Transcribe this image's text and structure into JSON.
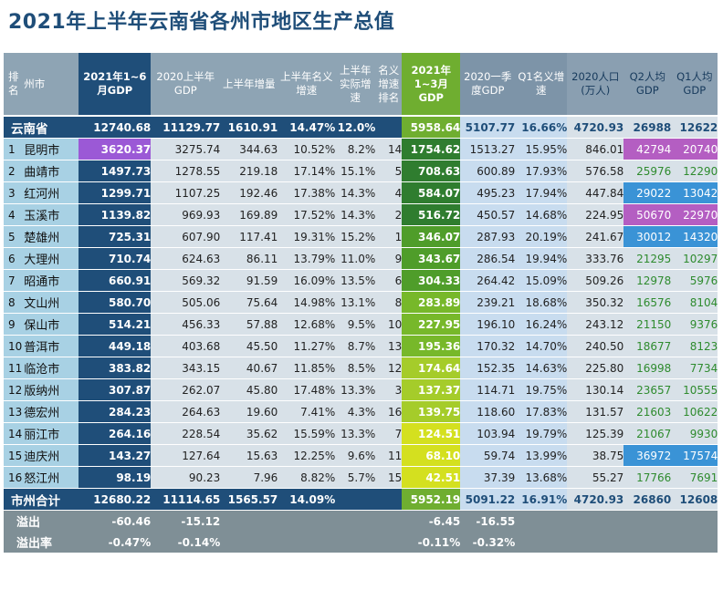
{
  "page": {
    "title": "2021年上半年云南省各州市地区生产总值"
  },
  "headers": {
    "rank": "排名",
    "name": "州市",
    "gdp21": "2021年1~6月GDP",
    "gdp20": "2020上半年GDP",
    "inc": "上半年增量",
    "ngr": "上半年名义增速",
    "rgr": "上半年实际增速",
    "rrank": "名义增速排名",
    "q1": "2021年1~3月GDP",
    "q1prev": "2020一季度GDP",
    "q1gr": "Q1名义增速",
    "pop": "2020人口(万人)",
    "q2pc": "Q2人均GDP",
    "q1pc": "Q1人均GDP"
  },
  "province": {
    "name": "云南省",
    "gdp21": "12740.68",
    "gdp20": "11129.77",
    "inc": "1610.91",
    "ngr": "14.47%",
    "rgr": "12.0%",
    "q1": "5958.64",
    "q1prev": "5107.77",
    "q1gr": "16.66%",
    "pop": "4720.93",
    "q2pc": "26988",
    "q1pc": "12622"
  },
  "rows": [
    {
      "rank": "1",
      "name": "昆明市",
      "gdp21": "3620.37",
      "gdp20": "3275.74",
      "inc": "344.63",
      "ngr": "10.52%",
      "rgr": "8.2%",
      "rrank": "14",
      "q1": "1754.62",
      "q1prev": "1513.27",
      "q1gr": "15.95%",
      "pop": "846.01",
      "q2pc": "42794",
      "q1pc": "20740"
    },
    {
      "rank": "2",
      "name": "曲靖市",
      "gdp21": "1497.73",
      "gdp20": "1278.55",
      "inc": "219.18",
      "ngr": "17.14%",
      "rgr": "15.1%",
      "rrank": "5",
      "q1": "708.63",
      "q1prev": "600.89",
      "q1gr": "17.93%",
      "pop": "576.58",
      "q2pc": "25976",
      "q1pc": "12290"
    },
    {
      "rank": "3",
      "name": "红河州",
      "gdp21": "1299.71",
      "gdp20": "1107.25",
      "inc": "192.46",
      "ngr": "17.38%",
      "rgr": "14.3%",
      "rrank": "4",
      "q1": "584.07",
      "q1prev": "495.23",
      "q1gr": "17.94%",
      "pop": "447.84",
      "q2pc": "29022",
      "q1pc": "13042"
    },
    {
      "rank": "4",
      "name": "玉溪市",
      "gdp21": "1139.82",
      "gdp20": "969.93",
      "inc": "169.89",
      "ngr": "17.52%",
      "rgr": "14.3%",
      "rrank": "2",
      "q1": "516.72",
      "q1prev": "450.57",
      "q1gr": "14.68%",
      "pop": "224.95",
      "q2pc": "50670",
      "q1pc": "22970"
    },
    {
      "rank": "5",
      "name": "楚雄州",
      "gdp21": "725.31",
      "gdp20": "607.90",
      "inc": "117.41",
      "ngr": "19.31%",
      "rgr": "15.2%",
      "rrank": "1",
      "q1": "346.07",
      "q1prev": "287.93",
      "q1gr": "20.19%",
      "pop": "241.67",
      "q2pc": "30012",
      "q1pc": "14320"
    },
    {
      "rank": "6",
      "name": "大理州",
      "gdp21": "710.74",
      "gdp20": "624.63",
      "inc": "86.11",
      "ngr": "13.79%",
      "rgr": "11.0%",
      "rrank": "9",
      "q1": "343.67",
      "q1prev": "286.54",
      "q1gr": "19.94%",
      "pop": "333.76",
      "q2pc": "21295",
      "q1pc": "10297"
    },
    {
      "rank": "7",
      "name": "昭通市",
      "gdp21": "660.91",
      "gdp20": "569.32",
      "inc": "91.59",
      "ngr": "16.09%",
      "rgr": "13.5%",
      "rrank": "6",
      "q1": "304.33",
      "q1prev": "264.42",
      "q1gr": "15.09%",
      "pop": "509.26",
      "q2pc": "12978",
      "q1pc": "5976"
    },
    {
      "rank": "8",
      "name": "文山州",
      "gdp21": "580.70",
      "gdp20": "505.06",
      "inc": "75.64",
      "ngr": "14.98%",
      "rgr": "13.1%",
      "rrank": "8",
      "q1": "283.89",
      "q1prev": "239.21",
      "q1gr": "18.68%",
      "pop": "350.32",
      "q2pc": "16576",
      "q1pc": "8104"
    },
    {
      "rank": "9",
      "name": "保山市",
      "gdp21": "514.21",
      "gdp20": "456.33",
      "inc": "57.88",
      "ngr": "12.68%",
      "rgr": "9.5%",
      "rrank": "10",
      "q1": "227.95",
      "q1prev": "196.10",
      "q1gr": "16.24%",
      "pop": "243.12",
      "q2pc": "21150",
      "q1pc": "9376"
    },
    {
      "rank": "10",
      "name": "普洱市",
      "gdp21": "449.18",
      "gdp20": "403.68",
      "inc": "45.50",
      "ngr": "11.27%",
      "rgr": "8.7%",
      "rrank": "13",
      "q1": "195.36",
      "q1prev": "170.32",
      "q1gr": "14.70%",
      "pop": "240.50",
      "q2pc": "18677",
      "q1pc": "8123"
    },
    {
      "rank": "11",
      "name": "临沧市",
      "gdp21": "383.82",
      "gdp20": "343.15",
      "inc": "40.67",
      "ngr": "11.85%",
      "rgr": "8.5%",
      "rrank": "12",
      "q1": "174.64",
      "q1prev": "152.35",
      "q1gr": "14.63%",
      "pop": "225.80",
      "q2pc": "16998",
      "q1pc": "7734"
    },
    {
      "rank": "12",
      "name": "版纳州",
      "gdp21": "307.87",
      "gdp20": "262.07",
      "inc": "45.80",
      "ngr": "17.48%",
      "rgr": "13.3%",
      "rrank": "3",
      "q1": "137.37",
      "q1prev": "114.71",
      "q1gr": "19.75%",
      "pop": "130.14",
      "q2pc": "23657",
      "q1pc": "10555"
    },
    {
      "rank": "13",
      "name": "德宏州",
      "gdp21": "284.23",
      "gdp20": "264.63",
      "inc": "19.60",
      "ngr": "7.41%",
      "rgr": "4.3%",
      "rrank": "16",
      "q1": "139.75",
      "q1prev": "118.60",
      "q1gr": "17.83%",
      "pop": "131.57",
      "q2pc": "21603",
      "q1pc": "10622"
    },
    {
      "rank": "14",
      "name": "丽江市",
      "gdp21": "264.16",
      "gdp20": "228.54",
      "inc": "35.62",
      "ngr": "15.59%",
      "rgr": "13.3%",
      "rrank": "7",
      "q1": "124.51",
      "q1prev": "103.94",
      "q1gr": "19.79%",
      "pop": "125.39",
      "q2pc": "21067",
      "q1pc": "9930"
    },
    {
      "rank": "15",
      "name": "迪庆州",
      "gdp21": "143.27",
      "gdp20": "127.64",
      "inc": "15.63",
      "ngr": "12.25%",
      "rgr": "9.6%",
      "rrank": "11",
      "q1": "68.10",
      "q1prev": "59.74",
      "q1gr": "13.99%",
      "pop": "38.75",
      "q2pc": "36972",
      "q1pc": "17574"
    },
    {
      "rank": "16",
      "name": "怒江州",
      "gdp21": "98.19",
      "gdp20": "90.23",
      "inc": "7.96",
      "ngr": "8.82%",
      "rgr": "5.7%",
      "rrank": "15",
      "q1": "42.51",
      "q1prev": "37.39",
      "q1gr": "13.68%",
      "pop": "55.27",
      "q2pc": "17766",
      "q1pc": "7691"
    }
  ],
  "total": {
    "label": "市州合计",
    "gdp21": "12680.22",
    "gdp20": "11114.65",
    "inc": "1565.57",
    "ngr": "14.09%",
    "q1": "5952.19",
    "q1prev": "5091.22",
    "q1gr": "16.91%",
    "pop": "4720.93",
    "q2pc": "26860",
    "q1pc": "12608"
  },
  "overflow": {
    "label": "溢出",
    "gdp21": "-60.46",
    "gdp20": "-15.12",
    "q1": "-6.45",
    "q1prev": "-16.55"
  },
  "overflow_rate": {
    "label": "溢出率",
    "gdp21": "-0.47%",
    "gdp20": "-0.14%",
    "q1": "-0.11%",
    "q1prev": "-0.32%"
  },
  "colors": {
    "gdp_bar": "#1f4e79",
    "gdp_top": "#9b59d6",
    "q1_gradient": [
      "#2f7d2f",
      "#4f9d2a",
      "#77b82a",
      "#a5cc2a",
      "#d4e01f"
    ],
    "pc_high": "#b45ec2",
    "pc_mid": "#3a93d6"
  }
}
